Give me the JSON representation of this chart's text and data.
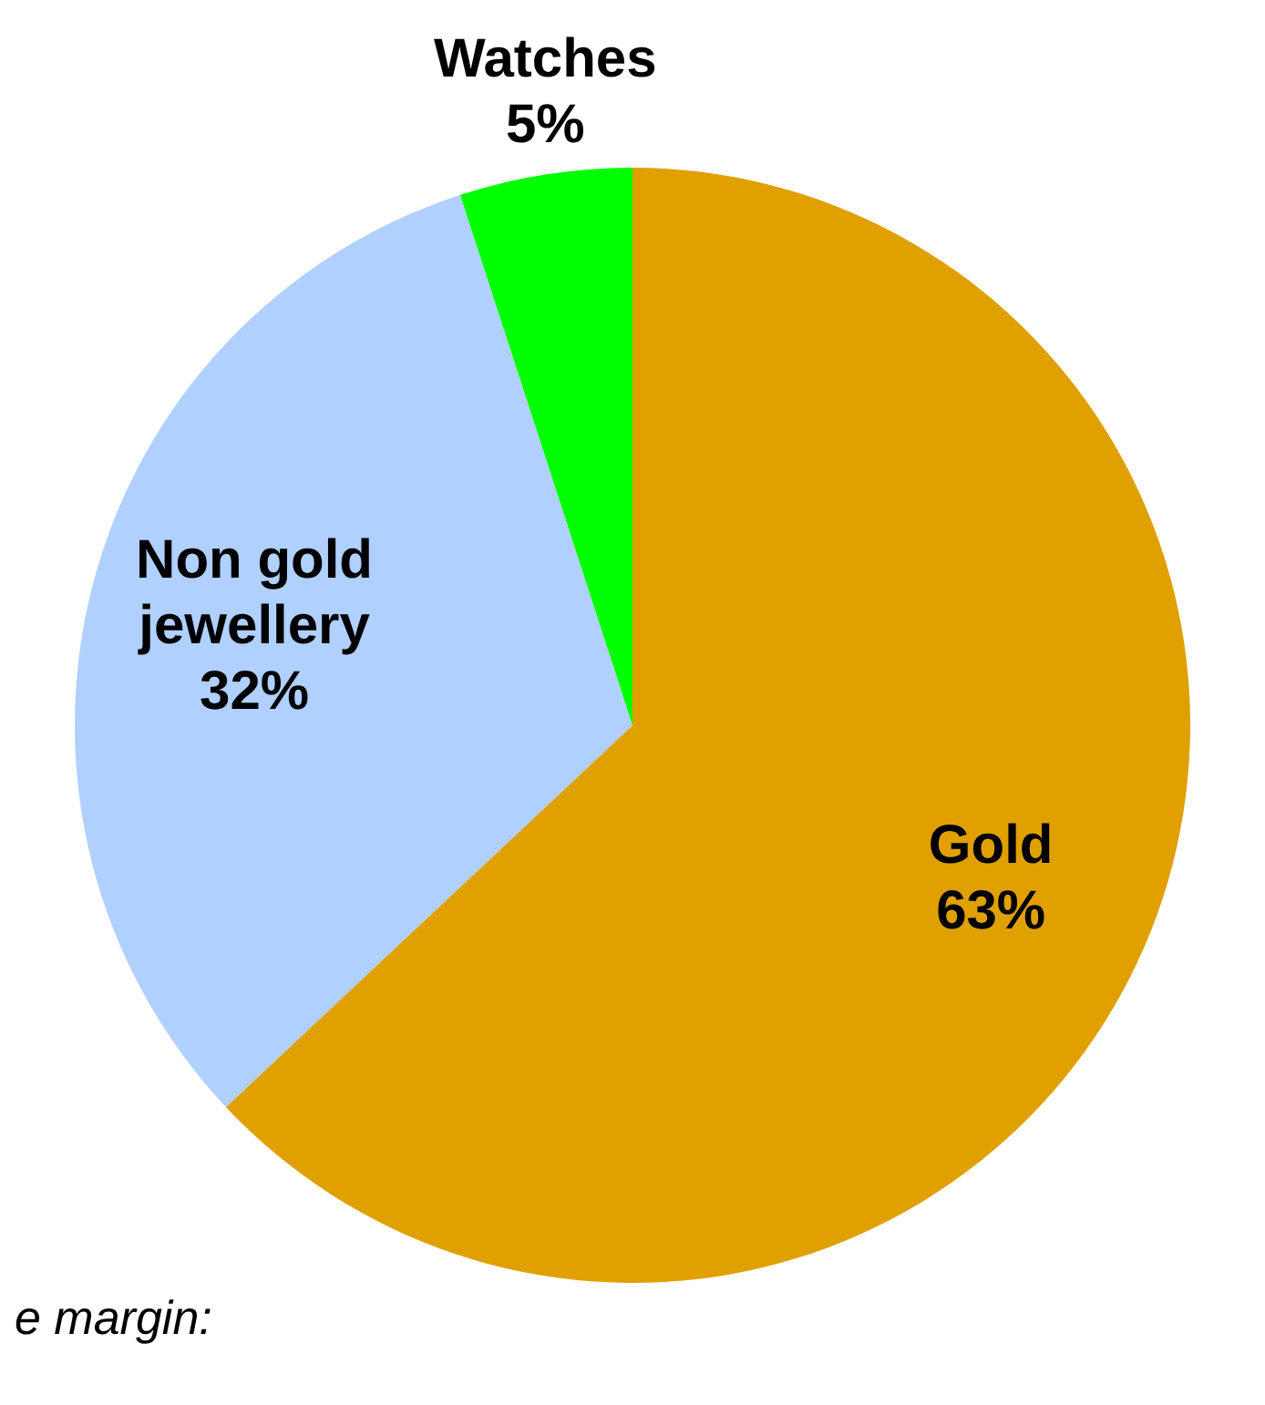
{
  "chart_data": {
    "type": "pie",
    "categories": [
      "Gold",
      "Non gold jewellery",
      "Watches"
    ],
    "values": [
      63,
      32,
      5
    ],
    "value_labels": [
      "63%",
      "32%",
      "5%"
    ],
    "colors": [
      "#e0a000",
      "#b0d0ff",
      "#00ff00"
    ],
    "annotations": [
      "e margin:"
    ],
    "legend": false
  }
}
